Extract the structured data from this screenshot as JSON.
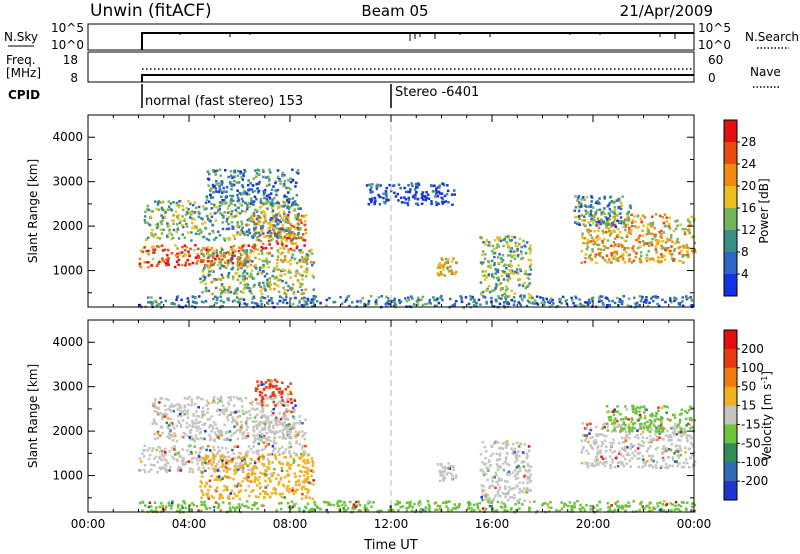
{
  "header": {
    "station": "Unwin (fitACF)",
    "beam": "Beam 05",
    "date": "21/Apr/2009"
  },
  "status_panels": {
    "nsky_label": "N.Sky",
    "nsearch_label": "N.Search",
    "freq_label_1": "Freq.",
    "freq_label_2": "[MHz]",
    "nave_label": "Nave",
    "cpid_label": "CPID",
    "left_tick_top": "10^5",
    "left_tick_bottom": "10^0",
    "right_tick_top": "10^5",
    "right_tick_bottom": "10^0",
    "freq_tick_top": "18",
    "freq_tick_bottom": "8",
    "nave_tick_top": "60",
    "nave_tick_bottom": "0",
    "cpid_1": "normal (fast stereo) 153",
    "cpid_2": "Stereo -6401"
  },
  "chart_data": [
    {
      "type": "heatmap",
      "panel": "power",
      "xlabel": "",
      "ylabel": "Slant Range [km]",
      "xlim": [
        0,
        24
      ],
      "ylim": [
        180,
        4500
      ],
      "ytick_labels": [
        "1000",
        "2000",
        "3000",
        "4000"
      ],
      "colorbar_label": "Power [dB]",
      "colorbar_ticks": [
        "4",
        "8",
        "12",
        "16",
        "20",
        "24",
        "28"
      ],
      "colorbar_colors": [
        "#1531e6",
        "#2f66c6",
        "#3c8f86",
        "#74b45b",
        "#e8c020",
        "#f08a12",
        "#e84a10",
        "#e01010"
      ],
      "grid": false,
      "regions": [
        {
          "t0": 2.0,
          "t1": 6.5,
          "r0": 1100,
          "r1": 1600,
          "level": 0.8
        },
        {
          "t0": 6.5,
          "t1": 8.6,
          "r0": 1500,
          "r1": 2300,
          "level": 0.75
        },
        {
          "t0": 2.2,
          "t1": 8.4,
          "r0": 1700,
          "r1": 2600,
          "level": 0.4
        },
        {
          "t0": 4.6,
          "t1": 8.3,
          "r0": 2500,
          "r1": 3300,
          "level": 0.25
        },
        {
          "t0": 4.4,
          "t1": 8.9,
          "r0": 500,
          "r1": 1500,
          "level": 0.45
        },
        {
          "t0": 13.8,
          "t1": 14.6,
          "r0": 900,
          "r1": 1300,
          "level": 0.55
        },
        {
          "t0": 15.5,
          "t1": 17.5,
          "r0": 400,
          "r1": 1800,
          "level": 0.4
        },
        {
          "t0": 19.5,
          "t1": 24.0,
          "r0": 1200,
          "r1": 2300,
          "level": 0.6
        },
        {
          "t0": 19.2,
          "t1": 21.5,
          "r0": 2000,
          "r1": 2700,
          "level": 0.3
        },
        {
          "t0": 2.0,
          "t1": 24.0,
          "r0": 200,
          "r1": 450,
          "level": 0.25
        },
        {
          "t0": 11.0,
          "t1": 14.5,
          "r0": 2500,
          "r1": 3000,
          "level": 0.12
        }
      ]
    },
    {
      "type": "heatmap",
      "panel": "velocity",
      "xlabel": "Time UT",
      "ylabel": "Slant Range [km]",
      "xlim": [
        0,
        24
      ],
      "ylim": [
        180,
        4500
      ],
      "xtick_labels": [
        "00:00",
        "04:00",
        "08:00",
        "12:00",
        "16:00",
        "20:00",
        "00:00"
      ],
      "ytick_labels": [
        "1000",
        "2000",
        "3000",
        "4000"
      ],
      "colorbar_label": "Velocity [m s^-1]",
      "colorbar_ticks": [
        "200",
        "100",
        "50",
        "15",
        "-15",
        "-50",
        "-100",
        "-200"
      ],
      "colorbar_colors": [
        "#2234d0",
        "#2f6ab3",
        "#2f8d5a",
        "#6cc43c",
        "#c4c4c0",
        "#f0b020",
        "#f07a12",
        "#e83a12",
        "#e01010"
      ],
      "grid": false,
      "regions": [
        {
          "t0": 2.0,
          "t1": 6.5,
          "r0": 1100,
          "r1": 1700,
          "color": "#c4c4c0"
        },
        {
          "t0": 6.5,
          "t1": 8.6,
          "r0": 1500,
          "r1": 2400,
          "color": "#c4c4c0"
        },
        {
          "t0": 2.5,
          "t1": 8.2,
          "r0": 1800,
          "r1": 2800,
          "color": "#c4c4c0"
        },
        {
          "t0": 6.6,
          "t1": 8.0,
          "r0": 2600,
          "r1": 3200,
          "color": "#e83a12"
        },
        {
          "t0": 4.4,
          "t1": 8.9,
          "r0": 500,
          "r1": 1500,
          "color": "#f0b020"
        },
        {
          "t0": 13.8,
          "t1": 14.6,
          "r0": 900,
          "r1": 1300,
          "color": "#c4c4c0"
        },
        {
          "t0": 15.5,
          "t1": 17.5,
          "r0": 400,
          "r1": 1800,
          "color": "#c4c4c0"
        },
        {
          "t0": 19.5,
          "t1": 24.0,
          "r0": 1200,
          "r1": 2200,
          "color": "#c4c4c0"
        },
        {
          "t0": 20.5,
          "t1": 24.0,
          "r0": 2000,
          "r1": 2600,
          "color": "#6cc43c"
        },
        {
          "t0": 2.0,
          "t1": 24.0,
          "r0": 200,
          "r1": 450,
          "color": "#6cc43c"
        }
      ]
    }
  ]
}
